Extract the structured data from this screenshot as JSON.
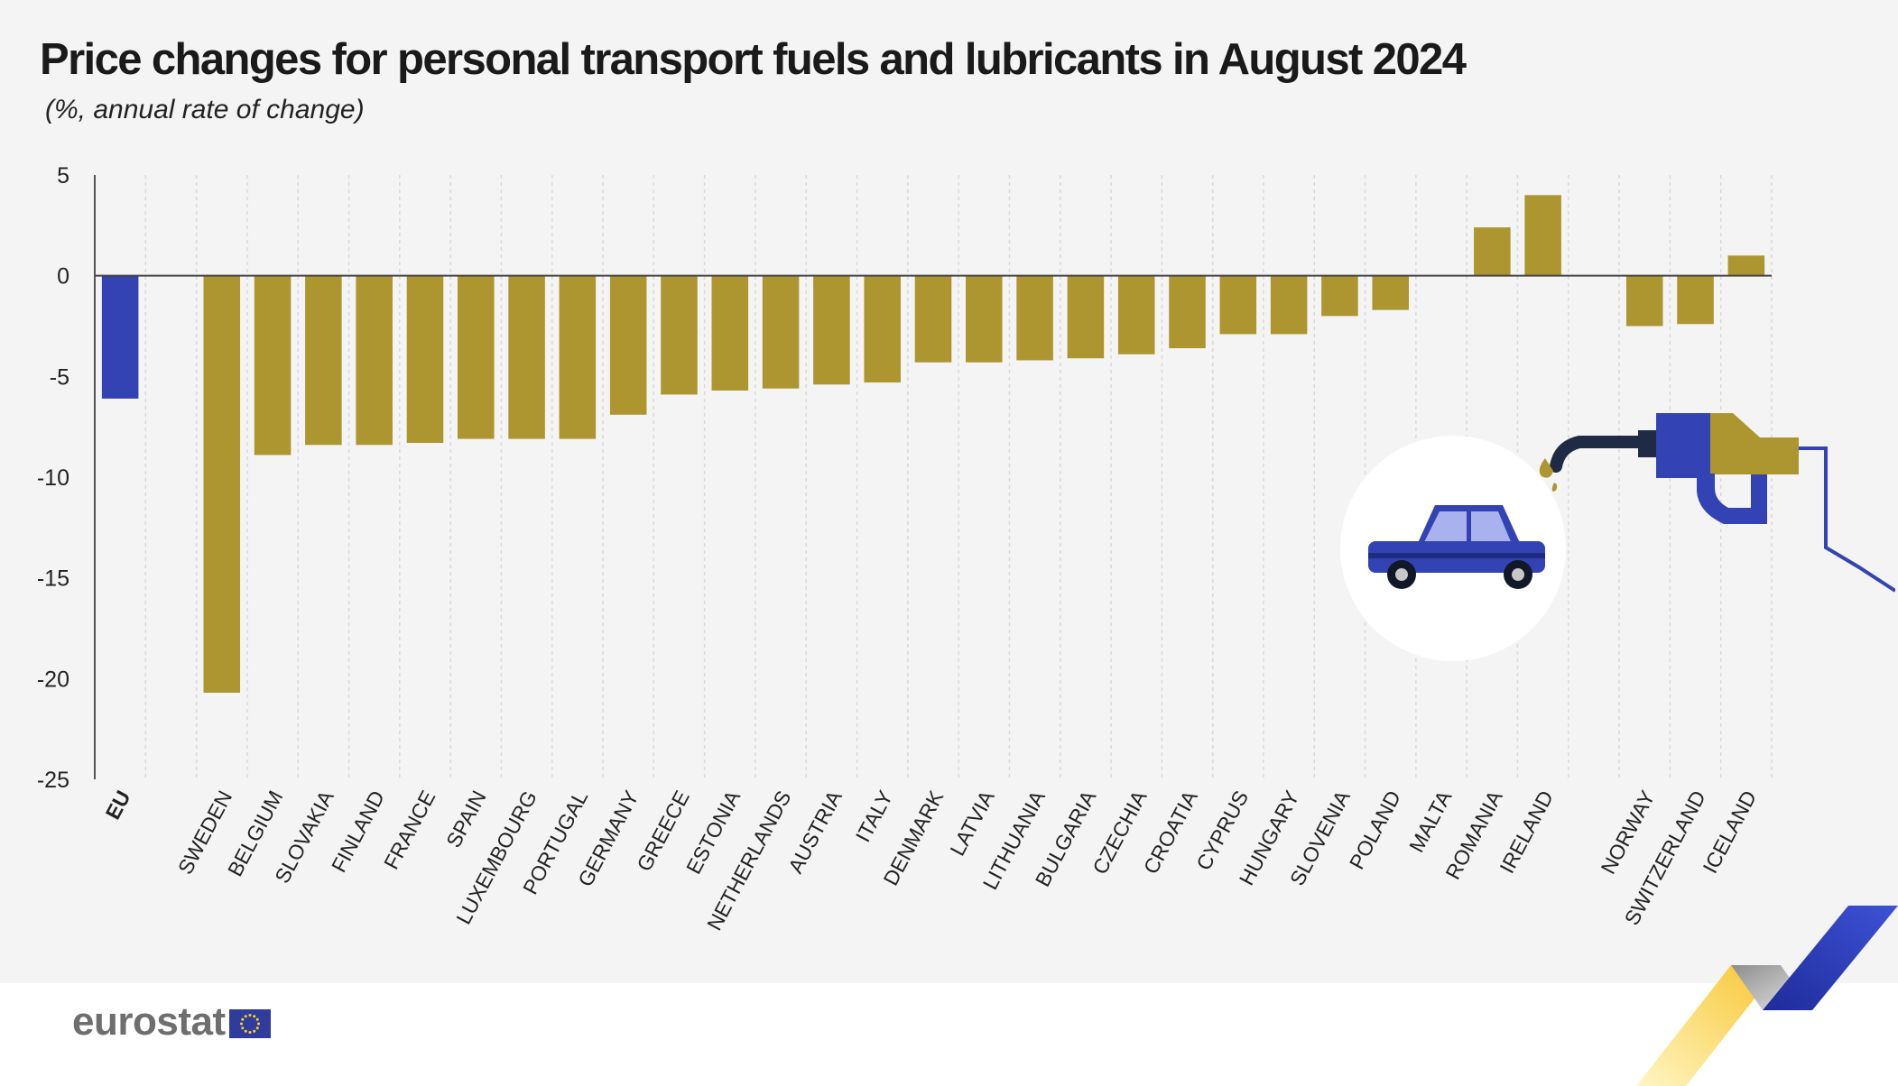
{
  "title": "Price changes for personal transport fuels and lubricants in August 2024",
  "subtitle": "(%, annual rate of change)",
  "logo": {
    "text": "eurostat",
    "flag_icon": "eu-flag-icon"
  },
  "colors": {
    "eu_bar": "#3343b4",
    "country_bar": "#ad9530",
    "background": "#f4f4f4"
  },
  "chart_data": {
    "type": "bar",
    "title": "Price changes for personal transport fuels and lubricants in August 2024",
    "subtitle": "(%, annual rate of change)",
    "xlabel": "",
    "ylabel": "",
    "ylim": [
      -25,
      5
    ],
    "yticks": [
      5,
      0,
      -5,
      -10,
      -15,
      -20,
      -25
    ],
    "grid": true,
    "categories": [
      "EU",
      "",
      "SWEDEN",
      "BELGIUM",
      "SLOVAKIA",
      "FINLAND",
      "FRANCE",
      "SPAIN",
      "LUXEMBOURG",
      "PORTUGAL",
      "GERMANY",
      "GREECE",
      "ESTONIA",
      "NETHERLANDS",
      "AUSTRIA",
      "ITALY",
      "DENMARK",
      "LATVIA",
      "LITHUANIA",
      "BULGARIA",
      "CZECHIA",
      "CROATIA",
      "CYPRUS",
      "HUNGARY",
      "SLOVENIA",
      "POLAND",
      "MALTA",
      "ROMANIA",
      "IRELAND",
      "",
      "NORWAY",
      "SWITZERLAND",
      "ICELAND"
    ],
    "values": [
      -6.1,
      null,
      -20.7,
      -8.9,
      -8.4,
      -8.4,
      -8.3,
      -8.1,
      -8.1,
      -8.1,
      -6.9,
      -5.9,
      -5.7,
      -5.6,
      -5.4,
      -5.3,
      -4.3,
      -4.3,
      -4.2,
      -4.1,
      -3.9,
      -3.6,
      -2.9,
      -2.9,
      -2.0,
      -1.7,
      0.0,
      2.4,
      4.0,
      null,
      -2.5,
      -2.4,
      1.0
    ]
  }
}
